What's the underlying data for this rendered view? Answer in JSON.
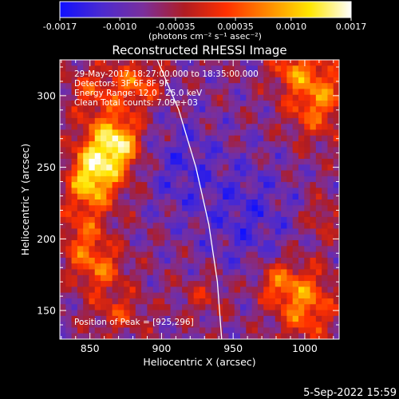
{
  "chart_data": {
    "type": "heatmap",
    "title": "Reconstructed RHESSI Image",
    "xlabel": "Heliocentric X (arcsec)",
    "ylabel": "Heliocentric Y (arcsec)",
    "xlim": [
      829,
      1024
    ],
    "ylim": [
      130,
      325
    ],
    "x_ticks": [
      850,
      900,
      950,
      1000
    ],
    "y_ticks": [
      150,
      200,
      250,
      300
    ],
    "colorbar": {
      "vmin": -0.0017,
      "vmax": 0.0017,
      "tick_values": [
        -0.0017,
        -0.001,
        -0.00035,
        0.00035,
        0.001,
        0.0017
      ],
      "tick_labels": [
        "-0.0017",
        "-0.0010",
        "-0.00035",
        "0.00035",
        "0.0010",
        "0.0017"
      ],
      "unit_label": "(photons cm⁻² s⁻¹ asec⁻²)",
      "colormap": [
        "#1010ff",
        "#4b2ad0",
        "#7a2f9c",
        "#b01c22",
        "#ff3000",
        "#ff8a00",
        "#ffe600",
        "#ffffff"
      ]
    },
    "annotations": [
      "29-May-2017 18:27:00.000 to 18:35:00.000",
      "Detectors: 3F 6F 8F 9F",
      "Energy Range: 12.0 - 25.0 keV",
      "Clean    Total counts: 7.09e+03"
    ],
    "peak_label": "Position of Peak = [925,296]",
    "peak_position": [
      925,
      296
    ],
    "limb_curve": [
      [
        897,
        325
      ],
      [
        912,
        290
      ],
      [
        924,
        250
      ],
      [
        933,
        210
      ],
      [
        939,
        170
      ],
      [
        942,
        130
      ]
    ],
    "sources": [
      {
        "x": 860,
        "y": 258,
        "sx": 13,
        "sy": 20,
        "amp": 0.0016
      },
      {
        "x": 848,
        "y": 240,
        "sx": 10,
        "sy": 14,
        "amp": 0.0012
      },
      {
        "x": 872,
        "y": 268,
        "sx": 10,
        "sy": 12,
        "amp": 0.0011
      },
      {
        "x": 882,
        "y": 308,
        "sx": 12,
        "sy": 12,
        "amp": 0.0011
      },
      {
        "x": 850,
        "y": 305,
        "sx": 12,
        "sy": 12,
        "amp": 0.0007
      },
      {
        "x": 845,
        "y": 200,
        "sx": 12,
        "sy": 16,
        "amp": 0.0009
      },
      {
        "x": 858,
        "y": 178,
        "sx": 12,
        "sy": 12,
        "amp": 0.0009
      },
      {
        "x": 870,
        "y": 148,
        "sx": 14,
        "sy": 10,
        "amp": 0.0007
      },
      {
        "x": 1008,
        "y": 300,
        "sx": 15,
        "sy": 20,
        "amp": 0.0013
      },
      {
        "x": 990,
        "y": 318,
        "sx": 10,
        "sy": 8,
        "amp": 0.0008
      },
      {
        "x": 1000,
        "y": 155,
        "sx": 14,
        "sy": 18,
        "amp": 0.0013
      },
      {
        "x": 980,
        "y": 170,
        "sx": 10,
        "sy": 10,
        "amp": 0.0009
      },
      {
        "x": 1012,
        "y": 215,
        "sx": 8,
        "sy": 10,
        "amp": 0.0006
      },
      {
        "x": 930,
        "y": 160,
        "sx": 12,
        "sy": 10,
        "amp": 0.0005
      },
      {
        "x": 960,
        "y": 215,
        "sx": 22,
        "sy": 28,
        "amp": -0.00055
      },
      {
        "x": 915,
        "y": 250,
        "sx": 18,
        "sy": 24,
        "amp": -0.0005
      }
    ]
  },
  "timestamp": "5-Sep-2022 15:59"
}
